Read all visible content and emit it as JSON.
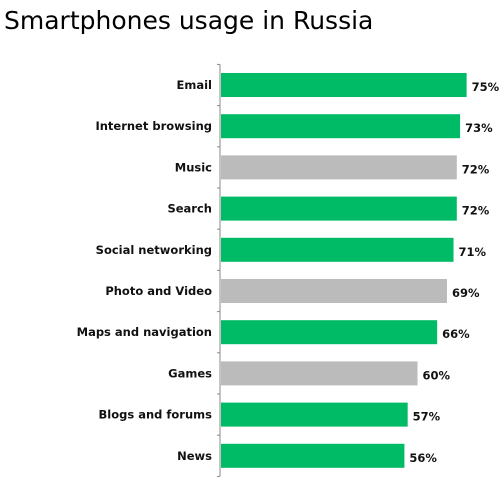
{
  "chart_data": {
    "type": "bar",
    "orientation": "horizontal",
    "title": "Smartphones usage in Russia",
    "categories": [
      "Email",
      "Internet browsing",
      "Music",
      "Search",
      "Social networking",
      "Photo and Video",
      "Maps and navigation",
      "Games",
      "Blogs and forums",
      "News"
    ],
    "values": [
      75,
      73,
      72,
      72,
      71,
      69,
      66,
      60,
      57,
      56
    ],
    "value_labels": [
      "75%",
      "73%",
      "72%",
      "72%",
      "71%",
      "69%",
      "66%",
      "60%",
      "57%",
      "56%"
    ],
    "bar_colors": [
      "#00bb66",
      "#00bb66",
      "#bbbbbb",
      "#00bb66",
      "#00bb66",
      "#bbbbbb",
      "#00bb66",
      "#bbbbbb",
      "#00bb66",
      "#00bb66"
    ],
    "value_unit": "%",
    "xlim": [
      0,
      80
    ],
    "grid": false,
    "legend": "none",
    "axis_color": "#888888"
  }
}
